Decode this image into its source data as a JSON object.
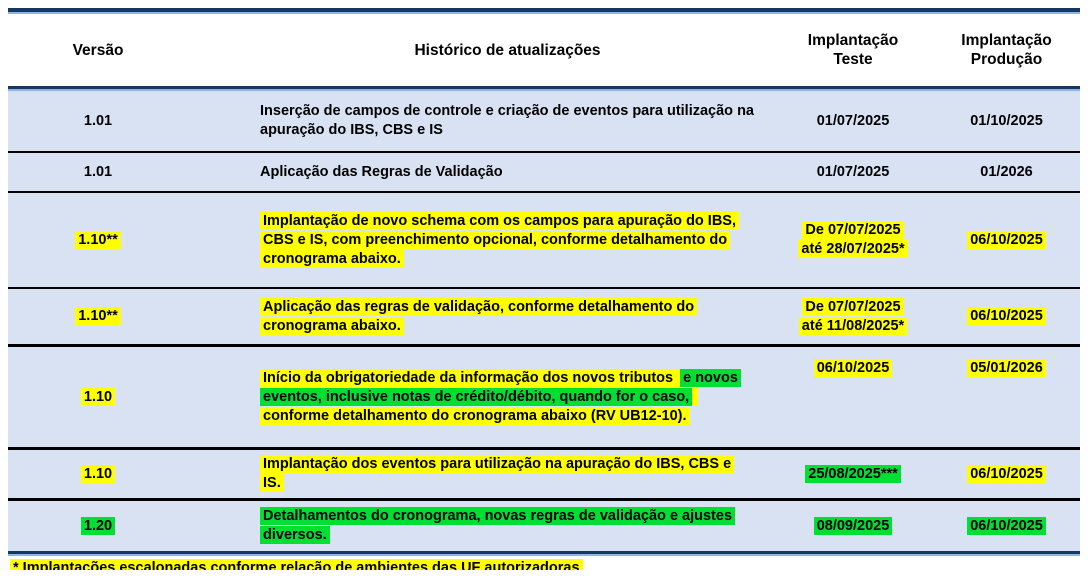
{
  "colors": {
    "highlight_yellow": "#ffff00",
    "highlight_green": "#00df32",
    "row_background": "#d9e2f3",
    "border_navy": "#17375e",
    "border_light_blue": "#8eb4e3",
    "separator_black": "#000000"
  },
  "header": {
    "versao": "Versão",
    "historico": "Histórico de atualizações",
    "teste": "Implantação\nTeste",
    "producao": "Implantação\nProdução"
  },
  "rows": [
    {
      "version": [
        {
          "text": "1.01",
          "hl": "none"
        }
      ],
      "history": [
        {
          "text": "Inserção de campos de controle e criação de eventos para utilização na apuração do IBS, CBS e IS",
          "hl": "none"
        }
      ],
      "teste": [
        {
          "text": "01/07/2025",
          "hl": "none"
        }
      ],
      "producao": [
        {
          "text": "01/10/2025",
          "hl": "none"
        }
      ]
    },
    {
      "version": [
        {
          "text": "1.01",
          "hl": "none"
        }
      ],
      "history": [
        {
          "text": "Aplicação das Regras de Validação",
          "hl": "none"
        }
      ],
      "teste": [
        {
          "text": "01/07/2025",
          "hl": "none"
        }
      ],
      "producao": [
        {
          "text": "01/2026",
          "hl": "none"
        }
      ]
    },
    {
      "version": [
        {
          "text": "1.10**",
          "hl": "yellow"
        }
      ],
      "history": [
        {
          "text": "Implantação de novo schema com os campos para apuração do IBS, CBS e IS, com preenchimento opcional, conforme detalhamento do cronograma abaixo.",
          "hl": "yellow"
        }
      ],
      "teste": [
        {
          "text": "De 07/07/2025",
          "hl": "yellow",
          "br": true
        },
        {
          "text": "até 28/07/2025*",
          "hl": "yellow"
        }
      ],
      "producao": [
        {
          "text": "06/10/2025",
          "hl": "yellow"
        }
      ]
    },
    {
      "version": [
        {
          "text": "1.10**",
          "hl": "yellow"
        }
      ],
      "history": [
        {
          "text": "Aplicação das regras de validação, conforme detalhamento do cronograma abaixo.",
          "hl": "yellow"
        }
      ],
      "teste": [
        {
          "text": "De 07/07/2025",
          "hl": "yellow",
          "br": true
        },
        {
          "text": "até 11/08/2025*",
          "hl": "yellow"
        }
      ],
      "producao": [
        {
          "text": "06/10/2025",
          "hl": "yellow"
        }
      ]
    },
    {
      "version": [
        {
          "text": "1.10",
          "hl": "yellow"
        }
      ],
      "history": [
        {
          "text": "Início da obrigatoriedade da informação dos novos tributos ",
          "hl": "yellow"
        },
        {
          "text": "e novos eventos, inclusive notas de crédito/débito, quando for o caso,",
          "hl": "green"
        },
        {
          "text": " conforme detalhamento do cronograma abaixo (RV UB12-10).",
          "hl": "yellow"
        }
      ],
      "teste": [
        {
          "text": "06/10/2025",
          "hl": "yellow"
        }
      ],
      "producao": [
        {
          "text": "05/01/2026",
          "hl": "yellow"
        }
      ]
    },
    {
      "version": [
        {
          "text": "1.10",
          "hl": "yellow"
        }
      ],
      "history": [
        {
          "text": "Implantação dos eventos para utilização na apuração do IBS, CBS e IS.",
          "hl": "yellow"
        }
      ],
      "teste": [
        {
          "text": "25/08/2025***",
          "hl": "green"
        }
      ],
      "producao": [
        {
          "text": "06/10/2025",
          "hl": "yellow"
        }
      ]
    },
    {
      "version": [
        {
          "text": "1.20",
          "hl": "green"
        }
      ],
      "history": [
        {
          "text": "Detalhamentos do cronograma, novas regras de validação e ajustes diversos.",
          "hl": "green"
        }
      ],
      "teste": [
        {
          "text": "08/09/2025",
          "hl": "green"
        }
      ],
      "producao": [
        {
          "text": "06/10/2025",
          "hl": "green"
        }
      ]
    }
  ],
  "footnote": {
    "text": "* Implantações escalonadas conforme relação de ambientes das UF autorizadoras"
  }
}
